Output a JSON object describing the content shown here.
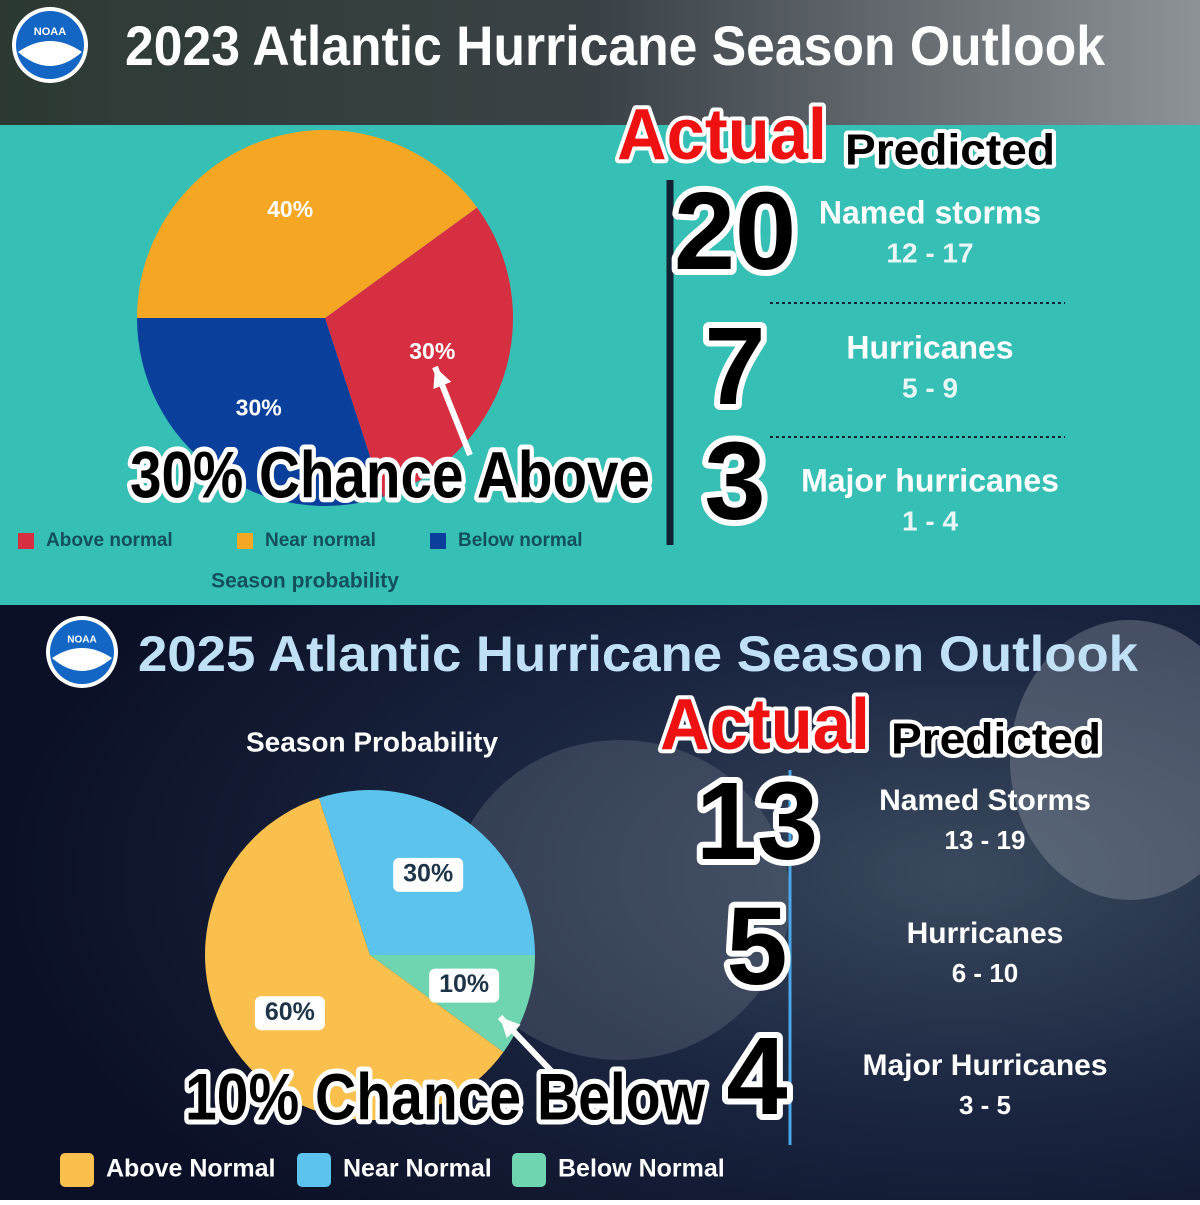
{
  "logo_text": "NOAA",
  "chart_data": [
    {
      "type": "pie",
      "title": "2023 Atlantic Hurricane Season Outlook",
      "subtitle": "Season probability",
      "categories": [
        "Above normal",
        "Near normal",
        "Below normal"
      ],
      "values": [
        30,
        40,
        30
      ],
      "value_labels": [
        "30%",
        "40%",
        "30%"
      ],
      "colors": [
        "#d62f42",
        "#f5a623",
        "#0b3f9c"
      ],
      "annotation": "30% Chance Above",
      "actual_heading": "Actual",
      "predicted_heading": "Predicted",
      "stats": [
        {
          "actual": 20,
          "name": "Named storms",
          "range": "12 - 17"
        },
        {
          "actual": 7,
          "name": "Hurricanes",
          "range": "5 - 9"
        },
        {
          "actual": 3,
          "name": "Major hurricanes",
          "range": "1 - 4"
        }
      ]
    },
    {
      "type": "pie",
      "title": "2025 Atlantic Hurricane Season Outlook",
      "subtitle": "Season Probability",
      "categories": [
        "Above Normal",
        "Near Normal",
        "Below Normal"
      ],
      "values": [
        60,
        30,
        10
      ],
      "value_labels": [
        "60%",
        "30%",
        "10%"
      ],
      "colors": [
        "#f9c04e",
        "#5bc3ec",
        "#6fd4b0"
      ],
      "annotation": "10% Chance Below",
      "actual_heading": "Actual",
      "predicted_heading": "Predicted",
      "stats": [
        {
          "actual": 13,
          "name": "Named Storms",
          "range": "13 - 19"
        },
        {
          "actual": 5,
          "name": "Hurricanes",
          "range": "6 - 10"
        },
        {
          "actual": 4,
          "name": "Major Hurricanes",
          "range": "3 - 5"
        }
      ]
    }
  ]
}
